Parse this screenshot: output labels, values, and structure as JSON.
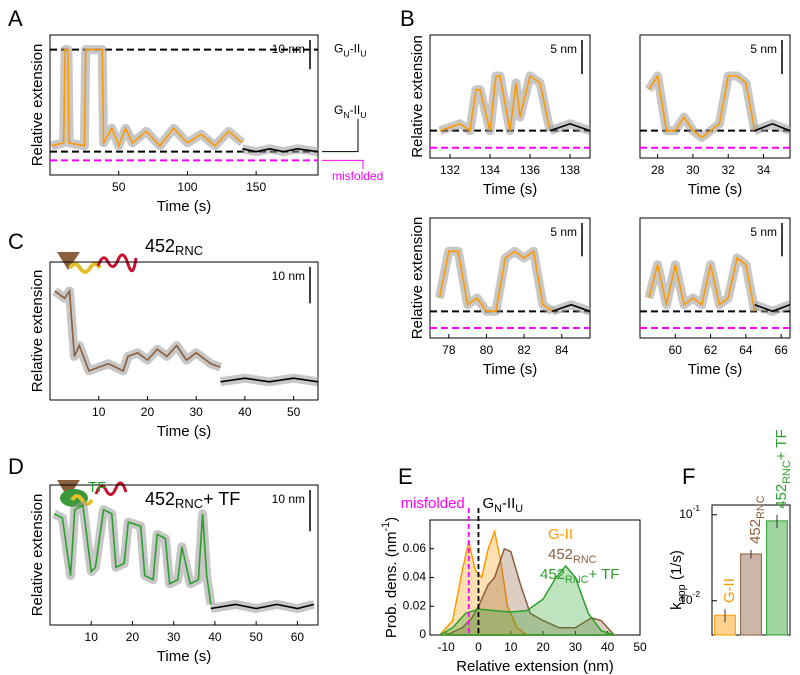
{
  "panels": [
    "A",
    "B",
    "C",
    "D",
    "E",
    "F"
  ],
  "chart_data": [
    {
      "type": "trace",
      "xlabel": "Time (s)",
      "ylabel": "Relative extension",
      "xlim": [
        0,
        195
      ],
      "xticks": [
        50,
        100,
        150
      ],
      "ylim": [
        -8,
        40
      ],
      "scalebar": {
        "value": 10,
        "label": "10 nm"
      },
      "levels": [
        {
          "value": 35,
          "color": "#000000"
        },
        {
          "value": 0,
          "color": "#000000"
        },
        {
          "value": -3,
          "color": "#ff00ff"
        }
      ],
      "annotations": [
        {
          "color": "#000000",
          "parts": [
            {
              "text": "G"
            },
            {
              "text": "U",
              "sub": true
            },
            {
              "text": "-II"
            },
            {
              "text": "U",
              "sub": true
            }
          ]
        },
        {
          "color": "#000000",
          "parts": [
            {
              "text": "G"
            },
            {
              "text": "N",
              "sub": true
            },
            {
              "text": "-II"
            },
            {
              "text": "U",
              "sub": true
            }
          ]
        },
        {
          "color": "#ff00ff",
          "parts": [
            {
              "text": "misfolded"
            }
          ]
        }
      ],
      "series": [
        {
          "color": "#ff9900",
          "x": [
            1,
            10,
            11,
            13,
            14,
            25,
            26,
            38,
            39,
            45,
            50,
            55,
            60,
            70,
            80,
            90,
            100,
            110,
            120,
            130,
            140
          ],
          "values": [
            2,
            3,
            35,
            35,
            3,
            2,
            35,
            35,
            3,
            8,
            2,
            8,
            3,
            7,
            2,
            8,
            3,
            6,
            2,
            7,
            3
          ]
        },
        {
          "color": "#000000",
          "x": [
            140,
            150,
            160,
            170,
            180,
            195
          ],
          "values": [
            1,
            0,
            1,
            0,
            1,
            0
          ]
        }
      ]
    },
    {
      "type": "trace",
      "xlabel": "Time (s)",
      "ylabel": "Relative extension",
      "xlim": [
        131,
        139
      ],
      "xticks": [
        132,
        134,
        136,
        138
      ],
      "ylim": [
        -4,
        14
      ],
      "scalebar": {
        "value": 5,
        "label": "5 nm"
      },
      "levels": [
        {
          "value": 0,
          "color": "#000000"
        },
        {
          "value": -2.5,
          "color": "#ff00ff"
        }
      ],
      "series": [
        {
          "color": "#ff9900",
          "x": [
            131.5,
            132.5,
            133,
            133.3,
            133.5,
            134,
            134.3,
            134.5,
            135,
            135.3,
            135.5,
            136,
            136.5,
            137
          ],
          "values": [
            0,
            1,
            0,
            6,
            6,
            0,
            8,
            8,
            0,
            7,
            2,
            8,
            7,
            0
          ]
        },
        {
          "color": "#000000",
          "x": [
            137,
            138,
            139
          ],
          "values": [
            0,
            1,
            0
          ]
        }
      ]
    },
    {
      "type": "trace",
      "xlabel": "Time (s)",
      "ylabel": "",
      "xlim": [
        27,
        35.5
      ],
      "xticks": [
        28,
        30,
        32,
        34
      ],
      "ylim": [
        -4,
        14
      ],
      "scalebar": {
        "value": 5,
        "label": "5 nm"
      },
      "levels": [
        {
          "value": 0,
          "color": "#000000"
        },
        {
          "value": -2.5,
          "color": "#ff00ff"
        }
      ],
      "series": [
        {
          "color": "#ff9900",
          "x": [
            27.5,
            28,
            28.5,
            29,
            29.5,
            30,
            30.5,
            31,
            31.5,
            32,
            32.5,
            33,
            33.5
          ],
          "values": [
            6,
            8,
            0,
            0,
            2,
            0,
            -1,
            0,
            1,
            8,
            8,
            7,
            0
          ]
        },
        {
          "color": "#000000",
          "x": [
            33.5,
            34.5,
            35.5
          ],
          "values": [
            0,
            1,
            0
          ]
        }
      ]
    },
    {
      "type": "trace",
      "xlabel": "Time (s)",
      "ylabel": "Relative extension",
      "xlim": [
        77,
        85.5
      ],
      "xticks": [
        78,
        80,
        82,
        84
      ],
      "ylim": [
        -4,
        14
      ],
      "scalebar": {
        "value": 5,
        "label": "5 nm"
      },
      "levels": [
        {
          "value": 0,
          "color": "#000000"
        },
        {
          "value": -2.5,
          "color": "#ff00ff"
        }
      ],
      "series": [
        {
          "color": "#ff9900",
          "x": [
            77.5,
            78,
            78.5,
            79,
            79.5,
            80,
            80.5,
            81,
            81.5,
            82,
            82.5,
            83,
            83.5
          ],
          "values": [
            2,
            9,
            9,
            1,
            2,
            0,
            0,
            8,
            9,
            8,
            9,
            1,
            0
          ]
        },
        {
          "color": "#000000",
          "x": [
            83.5,
            84.5,
            85.5
          ],
          "values": [
            0,
            1,
            0
          ]
        }
      ]
    },
    {
      "type": "trace",
      "xlabel": "Time (s)",
      "ylabel": "",
      "xlim": [
        58,
        66.5
      ],
      "xticks": [
        60,
        62,
        64,
        66
      ],
      "ylim": [
        -4,
        14
      ],
      "scalebar": {
        "value": 5,
        "label": "5 nm"
      },
      "levels": [
        {
          "value": 0,
          "color": "#000000"
        },
        {
          "value": -2.5,
          "color": "#ff00ff"
        }
      ],
      "series": [
        {
          "color": "#ff9900",
          "x": [
            58.5,
            59,
            59.5,
            60,
            60.5,
            61,
            61.5,
            62,
            62.5,
            63,
            63.5,
            64,
            64.5
          ],
          "values": [
            2,
            7,
            1,
            7,
            1,
            2,
            1,
            7,
            1,
            2,
            8,
            7,
            0
          ]
        },
        {
          "color": "#000000",
          "x": [
            64.5,
            65.5,
            66.5
          ],
          "values": [
            1,
            0,
            1
          ]
        }
      ]
    },
    {
      "type": "trace",
      "title": [
        {
          "text": "452"
        },
        {
          "text": "RNC",
          "sub": true
        }
      ],
      "xlabel": "Time (s)",
      "ylabel": "Relative extension",
      "xlim": [
        0,
        55
      ],
      "xticks": [
        10,
        20,
        30,
        40,
        50
      ],
      "ylim": [
        0,
        38
      ],
      "scalebar": {
        "value": 10,
        "label": "10 nm"
      },
      "series": [
        {
          "color": "#8b5e3c",
          "x": [
            1,
            3,
            4,
            5,
            6,
            8,
            10,
            12,
            15,
            16,
            18,
            20,
            22,
            24,
            26,
            28,
            30,
            33,
            35
          ],
          "values": [
            30,
            28,
            30,
            12,
            15,
            8,
            9,
            10,
            8,
            12,
            13,
            11,
            14,
            12,
            15,
            11,
            13,
            10,
            9
          ]
        },
        {
          "color": "#000000",
          "x": [
            35,
            40,
            45,
            50,
            55
          ],
          "values": [
            5,
            6,
            5,
            6,
            5
          ]
        }
      ]
    },
    {
      "type": "trace",
      "title": [
        {
          "text": "452"
        },
        {
          "text": "RNC",
          "sub": true
        },
        {
          "text": "+ TF"
        }
      ],
      "icon_label": "TF",
      "xlabel": "Time (s)",
      "ylabel": "Relative extension",
      "xlim": [
        0,
        65
      ],
      "xticks": [
        10,
        20,
        30,
        40,
        50,
        60
      ],
      "ylim": [
        -2,
        32
      ],
      "scalebar": {
        "value": 10,
        "label": "10 nm"
      },
      "series": [
        {
          "color": "#2ca02c",
          "x": [
            1,
            3,
            5,
            6,
            8,
            10,
            11,
            13,
            15,
            16,
            18,
            19,
            22,
            23,
            25,
            26,
            28,
            29,
            31,
            32,
            34,
            36,
            37,
            38,
            39
          ],
          "values": [
            25,
            24,
            10,
            26,
            27,
            11,
            12,
            26,
            25,
            12,
            13,
            23,
            22,
            10,
            9,
            20,
            19,
            8,
            9,
            17,
            8,
            9,
            25,
            10,
            3
          ]
        },
        {
          "color": "#000000",
          "x": [
            39,
            45,
            50,
            55,
            60,
            64
          ],
          "values": [
            2,
            3,
            2,
            3,
            2,
            3
          ]
        }
      ]
    },
    {
      "type": "area",
      "xlabel": "Relative extension (nm)",
      "ylabel": [
        {
          "text": "Prob. dens. (nm"
        },
        {
          "text": "-1",
          "sup": true
        },
        {
          "text": ")"
        }
      ],
      "xlim": [
        -15,
        50
      ],
      "xticks": [
        -10,
        0,
        10,
        20,
        30,
        40,
        50
      ],
      "ylim": [
        0,
        0.08
      ],
      "yticks": [
        0,
        0.02,
        0.04,
        0.06
      ],
      "levels": [
        {
          "value": -3,
          "color": "#ff00ff",
          "parts": [
            {
              "text": "misfolded"
            }
          ]
        },
        {
          "value": 0,
          "color": "#000000",
          "parts": [
            {
              "text": "G"
            },
            {
              "text": "N",
              "sub": true
            },
            {
              "text": "-II"
            },
            {
              "text": "U",
              "sub": true
            }
          ]
        }
      ],
      "series": [
        {
          "name": [
            {
              "text": "G-II"
            }
          ],
          "color": "#ff9900",
          "x": [
            -12,
            -8,
            -5,
            -3,
            -1,
            1,
            3,
            5,
            7,
            9,
            12,
            15,
            20
          ],
          "values": [
            0,
            0.01,
            0.045,
            0.065,
            0.045,
            0.04,
            0.06,
            0.072,
            0.05,
            0.02,
            0.005,
            0,
            0
          ]
        },
        {
          "name": [
            {
              "text": "452"
            },
            {
              "text": "RNC",
              "sub": true
            }
          ],
          "color": "#8b5e3c",
          "x": [
            -10,
            -5,
            -2,
            0,
            3,
            5,
            8,
            10,
            13,
            16,
            20,
            25,
            30,
            35,
            38,
            42
          ],
          "values": [
            0,
            0.005,
            0.012,
            0.02,
            0.035,
            0.04,
            0.06,
            0.058,
            0.035,
            0.015,
            0.01,
            0.005,
            0.005,
            0.012,
            0.01,
            0
          ]
        },
        {
          "name": [
            {
              "text": "452"
            },
            {
              "text": "RNC",
              "sub": true
            },
            {
              "text": "+ TF"
            }
          ],
          "color": "#2ca02c",
          "x": [
            -12,
            -8,
            -4,
            0,
            5,
            10,
            15,
            20,
            24,
            27,
            30,
            34,
            38,
            42
          ],
          "values": [
            0,
            0.005,
            0.015,
            0.018,
            0.017,
            0.016,
            0.017,
            0.025,
            0.04,
            0.048,
            0.04,
            0.015,
            0.003,
            0
          ]
        }
      ]
    },
    {
      "type": "bar",
      "log_y": true,
      "ylabel": [
        {
          "text": "k"
        },
        {
          "text": "app",
          "sub": true
        },
        {
          "text": " (1/s)"
        }
      ],
      "ylim": [
        0.004,
        0.13
      ],
      "yticks": [
        {
          "value": 0.01,
          "label": "10",
          "sup": "-2"
        },
        {
          "value": 0.1,
          "label": "10",
          "sup": "-1"
        }
      ],
      "categories": [
        [
          {
            "text": "G-II"
          }
        ],
        [
          {
            "text": "452"
          },
          {
            "text": "RNC",
            "sub": true
          }
        ],
        [
          {
            "text": "452"
          },
          {
            "text": "RNC",
            "sub": true
          },
          {
            "text": "+ TF"
          }
        ]
      ],
      "colors": [
        "#ff9900",
        "#8b5e3c",
        "#2ca02c"
      ],
      "values": [
        0.0068,
        0.035,
        0.085
      ],
      "errors": [
        0.0012,
        0.004,
        0.015
      ]
    }
  ]
}
